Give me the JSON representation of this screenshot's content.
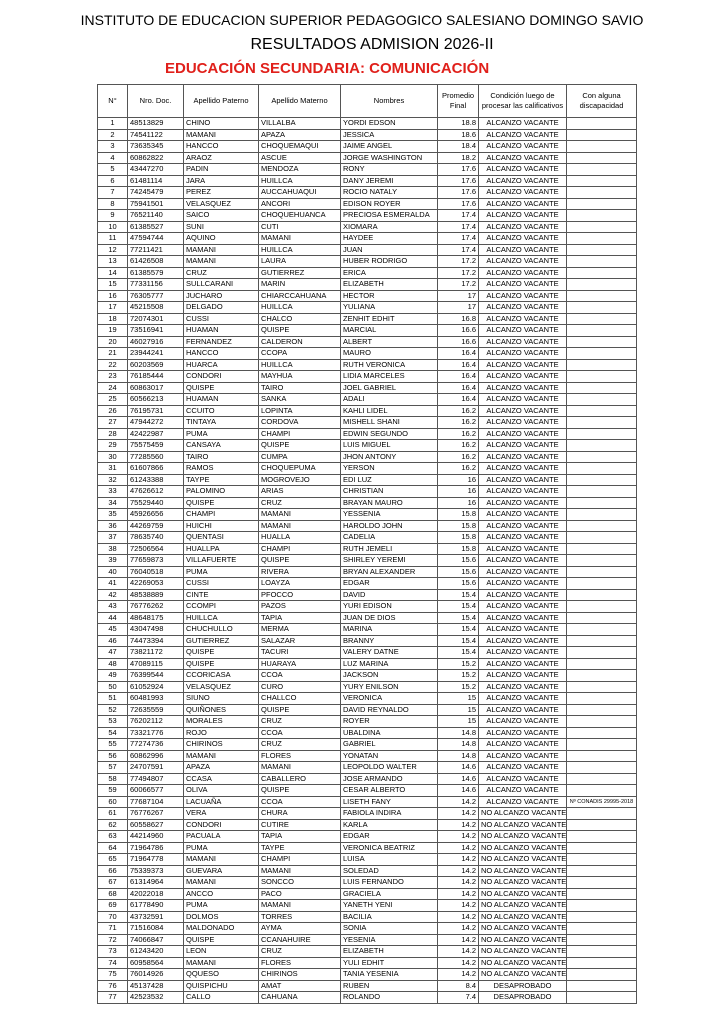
{
  "header": {
    "institution": "INSTITUTO DE EDUCACION SUPERIOR PEDAGOGICO SALESIANO DOMINGO SAVIO",
    "title": "RESULTADOS ADMISION 2026-II",
    "program": "EDUCACIÓN SECUNDARIA: COMUNICACIÓN"
  },
  "table": {
    "columns": [
      "N°",
      "Nro. Doc.",
      "Apellido Paterno",
      "Apellido Materno",
      "Nombres",
      "Promedio Final",
      "Condición luego de procesar las calificativos",
      "Con alguna discapacidad"
    ],
    "rows": [
      [
        1,
        "48513829",
        "CHINO",
        "VILLALBA",
        "YORDI EDSON",
        18.8,
        "ALCANZO VACANTE"
      ],
      [
        2,
        "74541122",
        "MAMANI",
        "APAZA",
        "JESSICA",
        18.6,
        "ALCANZO VACANTE"
      ],
      [
        3,
        "73635345",
        "HANCCO",
        "CHOQUEMAQUI",
        "JAIME ANGEL",
        18.4,
        "ALCANZO VACANTE"
      ],
      [
        4,
        "60862822",
        "ARAOZ",
        "ASCUE",
        "JORGE WASHINGTON",
        18.2,
        "ALCANZO VACANTE"
      ],
      [
        5,
        "43447270",
        "PADIN",
        "MENDOZA",
        "RONY",
        17.6,
        "ALCANZO VACANTE"
      ],
      [
        6,
        "61481114",
        "JARA",
        "HUILLCA",
        "DANY JEREMI",
        17.6,
        "ALCANZO VACANTE"
      ],
      [
        7,
        "74245479",
        "PEREZ",
        "AUCCAHUAQUI",
        "ROCIO NATALY",
        17.6,
        "ALCANZO VACANTE"
      ],
      [
        8,
        "75941501",
        "VELASQUEZ",
        "ANCORI",
        "EDISON ROYER",
        17.6,
        "ALCANZO VACANTE"
      ],
      [
        9,
        "76521140",
        "SAICO",
        "CHOQUEHUANCA",
        "PRECIOSA ESMERALDA",
        17.4,
        "ALCANZO VACANTE"
      ],
      [
        10,
        "61385527",
        "SUNI",
        "CUTI",
        "XIOMARA",
        17.4,
        "ALCANZO VACANTE"
      ],
      [
        11,
        "47594744",
        "AQUINO",
        "MAMANI",
        "HAYDEE",
        17.4,
        "ALCANZO VACANTE"
      ],
      [
        12,
        "77211421",
        "MAMANI",
        "HUILLCA",
        "JUAN",
        17.4,
        "ALCANZO VACANTE"
      ],
      [
        13,
        "61426508",
        "MAMANI",
        "LAURA",
        "HUBER RODRIGO",
        17.2,
        "ALCANZO VACANTE"
      ],
      [
        14,
        "61385579",
        "CRUZ",
        "GUTIERREZ",
        "ERICA",
        17.2,
        "ALCANZO VACANTE"
      ],
      [
        15,
        "77331156",
        "SULLCARANI",
        "MARIN",
        "ELIZABETH",
        17.2,
        "ALCANZO VACANTE"
      ],
      [
        16,
        "76305777",
        "JUCHARO",
        "CHIARCCAHUANA",
        "HECTOR",
        17,
        "ALCANZO VACANTE"
      ],
      [
        17,
        "45215508",
        "DELGADO",
        "HUILLCA",
        "YULIANA",
        17,
        "ALCANZO VACANTE"
      ],
      [
        18,
        "72074301",
        "CUSSI",
        "CHALCO",
        "ZENHIT EDHIT",
        16.8,
        "ALCANZO VACANTE"
      ],
      [
        19,
        "73516941",
        "HUAMAN",
        "QUISPE",
        "MARCIAL",
        16.6,
        "ALCANZO VACANTE"
      ],
      [
        20,
        "46027916",
        "FERNANDEZ",
        "CALDERON",
        "ALBERT",
        16.6,
        "ALCANZO VACANTE"
      ],
      [
        21,
        "23944241",
        "HANCCO",
        "CCOPA",
        "MAURO",
        16.4,
        "ALCANZO VACANTE"
      ],
      [
        22,
        "60203569",
        "HUARCA",
        "HUILLCA",
        "RUTH VERONICA",
        16.4,
        "ALCANZO VACANTE"
      ],
      [
        23,
        "76185444",
        "CONDORI",
        "MAYHUA",
        "LIDIA MARCELES",
        16.4,
        "ALCANZO VACANTE"
      ],
      [
        24,
        "60863017",
        "QUISPE",
        "TAIRO",
        "JOEL GABRIEL",
        16.4,
        "ALCANZO VACANTE"
      ],
      [
        25,
        "60566213",
        "HUAMAN",
        "SANKA",
        "ADALI",
        16.4,
        "ALCANZO VACANTE"
      ],
      [
        26,
        "76195731",
        "CCUITO",
        "LOPINTA",
        "KAHLI LIDEL",
        16.2,
        "ALCANZO VACANTE"
      ],
      [
        27,
        "47944272",
        "TINTAYA",
        "CORDOVA",
        "MISHELL SHANI",
        16.2,
        "ALCANZO VACANTE"
      ],
      [
        28,
        "42422987",
        "PUMA",
        "CHAMPI",
        "EDWIN SEGUNDO",
        16.2,
        "ALCANZO VACANTE"
      ],
      [
        29,
        "75575459",
        "CANSAYA",
        "QUISPE",
        "LUIS MIGUEL",
        16.2,
        "ALCANZO VACANTE"
      ],
      [
        30,
        "77285560",
        "TAIRO",
        "CUMPA",
        "JHON ANTONY",
        16.2,
        "ALCANZO VACANTE"
      ],
      [
        31,
        "61607866",
        "RAMOS",
        "CHOQUEPUMA",
        "YERSON",
        16.2,
        "ALCANZO VACANTE"
      ],
      [
        32,
        "61243388",
        "TAYPE",
        "MOGROVEJO",
        "EDI LUZ",
        16,
        "ALCANZO VACANTE"
      ],
      [
        33,
        "47626612",
        "PALOMINO",
        "ARIAS",
        "CHRISTIAN",
        16,
        "ALCANZO VACANTE"
      ],
      [
        34,
        "75529440",
        "QUISPE",
        "CRUZ",
        "BRAYAN MAURO",
        16,
        "ALCANZO VACANTE"
      ],
      [
        35,
        "45926656",
        "CHAMPI",
        "MAMANI",
        "YESSENIA",
        15.8,
        "ALCANZO VACANTE"
      ],
      [
        36,
        "44269759",
        "HUICHI",
        "MAMANI",
        "HAROLDO JOHN",
        15.8,
        "ALCANZO VACANTE"
      ],
      [
        37,
        "78635740",
        "QUENTASI",
        "HUALLA",
        "CADELIA",
        15.8,
        "ALCANZO VACANTE"
      ],
      [
        38,
        "72506564",
        "HUALLPA",
        "CHAMPI",
        "RUTH JEMELI",
        15.8,
        "ALCANZO VACANTE"
      ],
      [
        39,
        "77659873",
        "VILLAFUERTE",
        "QUISPE",
        "SHIRLEY YEREMI",
        15.6,
        "ALCANZO VACANTE"
      ],
      [
        40,
        "76040518",
        "PUMA",
        "RIVERA",
        "BRYAN ALEXANDER",
        15.6,
        "ALCANZO VACANTE"
      ],
      [
        41,
        "42269053",
        "CUSSI",
        "LOAYZA",
        "EDGAR",
        15.6,
        "ALCANZO VACANTE"
      ],
      [
        42,
        "48538889",
        "CINTE",
        "PFOCCO",
        "DAVID",
        15.4,
        "ALCANZO VACANTE"
      ],
      [
        43,
        "76776262",
        "CCOMPI",
        "PAZOS",
        "YURI EDISON",
        15.4,
        "ALCANZO VACANTE"
      ],
      [
        44,
        "48648175",
        "HUILLCA",
        "TAPIA",
        "JUAN DE DIOS",
        15.4,
        "ALCANZO VACANTE"
      ],
      [
        45,
        "43047498",
        "CHUCHULLO",
        "MERMA",
        "MARINA",
        15.4,
        "ALCANZO VACANTE"
      ],
      [
        46,
        "74473394",
        "GUTIERREZ",
        "SALAZAR",
        "BRANNY",
        15.4,
        "ALCANZO VACANTE"
      ],
      [
        47,
        "73821172",
        "QUISPE",
        "TACURI",
        "VALERY DATNE",
        15.4,
        "ALCANZO VACANTE"
      ],
      [
        48,
        "47089115",
        "QUISPE",
        "HUARAYA",
        "LUZ MARINA",
        15.2,
        "ALCANZO VACANTE"
      ],
      [
        49,
        "76399544",
        "CCORICASA",
        "CCOA",
        "JACKSON",
        15.2,
        "ALCANZO VACANTE"
      ],
      [
        50,
        "61052924",
        "VELASQUEZ",
        "CURO",
        "YURY ENILSON",
        15.2,
        "ALCANZO VACANTE"
      ],
      [
        51,
        "60481993",
        "SIUNO",
        "CHALLCO",
        "VERONICA",
        15,
        "ALCANZO VACANTE"
      ],
      [
        52,
        "72635559",
        "QUIÑONES",
        "QUISPE",
        "DAVID REYNALDO",
        15,
        "ALCANZO VACANTE"
      ],
      [
        53,
        "76202112",
        "MORALES",
        "CRUZ",
        "ROYER",
        15,
        "ALCANZO VACANTE"
      ],
      [
        54,
        "73321776",
        "ROJO",
        "CCOA",
        "UBALDINA",
        14.8,
        "ALCANZO VACANTE"
      ],
      [
        55,
        "77274736",
        "CHIRINOS",
        "CRUZ",
        "GABRIEL",
        14.8,
        "ALCANZO VACANTE"
      ],
      [
        56,
        "60862996",
        "MAMANI",
        "FLORES",
        "YONATAN",
        14.8,
        "ALCANZO VACANTE"
      ],
      [
        57,
        "24707591",
        "APAZA",
        "MAMANI",
        "LEOPOLDO WALTER",
        14.6,
        "ALCANZO VACANTE"
      ],
      [
        58,
        "77494807",
        "CCASA",
        "CABALLERO",
        "JOSE ARMANDO",
        14.6,
        "ALCANZO VACANTE"
      ],
      [
        59,
        "60066577",
        "OLIVA",
        "QUISPE",
        "CESAR ALBERTO",
        14.6,
        "ALCANZO VACANTE"
      ],
      [
        60,
        "77687104",
        "LACUAÑA",
        "CCOA",
        "LISETH FANY",
        14.2,
        "ALCANZO VACANTE",
        "Nº CONADIS 29995-2018"
      ],
      [
        61,
        "76776267",
        "VERA",
        "CHURA",
        "FABIOLA INDIRA",
        14.2,
        "NO ALCANZO VACANTE"
      ],
      [
        62,
        "60558627",
        "CONDORI",
        "CUTIRE",
        "KARLA",
        14.2,
        "NO ALCANZO VACANTE"
      ],
      [
        63,
        "44214960",
        "PACUALA",
        "TAPIA",
        "EDGAR",
        14.2,
        "NO ALCANZO VACANTE"
      ],
      [
        64,
        "71964786",
        "PUMA",
        "TAYPE",
        "VERONICA BEATRIZ",
        14.2,
        "NO ALCANZO VACANTE"
      ],
      [
        65,
        "71964778",
        "MAMANI",
        "CHAMPI",
        "LUISA",
        14.2,
        "NO ALCANZO VACANTE"
      ],
      [
        66,
        "75339373",
        "GUEVARA",
        "MAMANI",
        "SOLEDAD",
        14.2,
        "NO ALCANZO VACANTE"
      ],
      [
        67,
        "61314964",
        "MAMANI",
        "SONCCO",
        "LUIS FERNANDO",
        14.2,
        "NO ALCANZO VACANTE"
      ],
      [
        68,
        "42022018",
        "ANCCO",
        "PACO",
        "GRACIELA",
        14.2,
        "NO ALCANZO VACANTE"
      ],
      [
        69,
        "61778490",
        "PUMA",
        "MAMANI",
        "YANETH YENI",
        14.2,
        "NO ALCANZO VACANTE"
      ],
      [
        70,
        "43732591",
        "DOLMOS",
        "TORRES",
        "BACILIA",
        14.2,
        "NO ALCANZO VACANTE"
      ],
      [
        71,
        "71516084",
        "MALDONADO",
        "AYMA",
        "SONIA",
        14.2,
        "NO ALCANZO VACANTE"
      ],
      [
        72,
        "74066847",
        "QUISPE",
        "CCANAHUIRE",
        "YESENIA",
        14.2,
        "NO ALCANZO VACANTE"
      ],
      [
        73,
        "61243420",
        "LEON",
        "CRUZ",
        "ELIZABETH",
        14.2,
        "NO ALCANZO VACANTE"
      ],
      [
        74,
        "60958564",
        "MAMANI",
        "FLORES",
        "YULI EDHIT",
        14.2,
        "NO ALCANZO VACANTE"
      ],
      [
        75,
        "76014926",
        "QQUESO",
        "CHIRINOS",
        "TANIA YESENIA",
        14.2,
        "NO ALCANZO VACANTE"
      ],
      [
        76,
        "45137428",
        "QUISPICHU",
        "AMAT",
        "RUBEN",
        8.4,
        "DESAPROBADO"
      ],
      [
        77,
        "42523532",
        "CALLO",
        "CAHUANA",
        "ROLANDO",
        7.4,
        "DESAPROBADO"
      ]
    ]
  }
}
